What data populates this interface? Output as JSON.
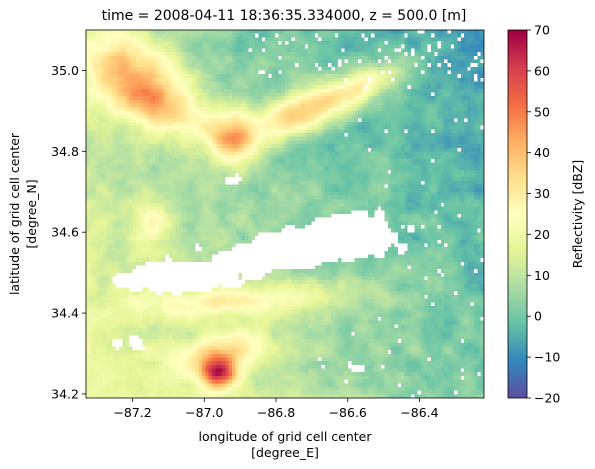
{
  "chart_data": {
    "type": "heatmap",
    "title": "time = 2008-04-11 18:36:35.334000, z = 500.0 [m]",
    "xlabel_line1": "longitude of grid cell center",
    "xlabel_line2": "[degree_E]",
    "ylabel_line1": "latitude of grid cell center",
    "ylabel_line2": "[degree_N]",
    "colorbar_label": "Reflectivity [dBZ]",
    "xlim": [
      -87.33,
      -86.22
    ],
    "ylim": [
      34.19,
      35.1
    ],
    "vlim": [
      -20,
      70
    ],
    "x_ticks": [
      -87.2,
      -87.0,
      -86.8,
      -86.6,
      -86.4
    ],
    "x_tick_labels": [
      "−87.2",
      "−87.0",
      "−86.8",
      "−86.6",
      "−86.4"
    ],
    "y_ticks": [
      34.2,
      34.4,
      34.6,
      34.8,
      35.0
    ],
    "y_tick_labels": [
      "34.2",
      "34.4",
      "34.6",
      "34.8",
      "35.0"
    ],
    "colorbar_ticks": [
      -20,
      -10,
      0,
      10,
      20,
      30,
      40,
      50,
      60,
      70
    ],
    "colorbar_tick_labels": [
      "−20",
      "−10",
      "0",
      "10",
      "20",
      "30",
      "40",
      "50",
      "60",
      "70"
    ],
    "colormap": "Spectral_r",
    "missing_color": "#ffffff",
    "cores": [
      {
        "lon": -86.96,
        "lat": 34.25,
        "dbz": 56
      },
      {
        "lon": -86.92,
        "lat": 34.85,
        "dbz": 50
      },
      {
        "lon": -86.66,
        "lat": 34.87,
        "dbz": 48
      },
      {
        "lon": -86.72,
        "lat": 34.9,
        "dbz": 44
      },
      {
        "lon": -87.22,
        "lat": 35.0,
        "dbz": 42
      },
      {
        "lon": -87.03,
        "lat": 34.93,
        "dbz": 38
      },
      {
        "lon": -86.8,
        "lat": 34.41,
        "dbz": 28
      },
      {
        "lon": -87.0,
        "lat": 34.44,
        "dbz": 26
      },
      {
        "lon": -87.15,
        "lat": 34.62,
        "dbz": 30
      }
    ]
  }
}
